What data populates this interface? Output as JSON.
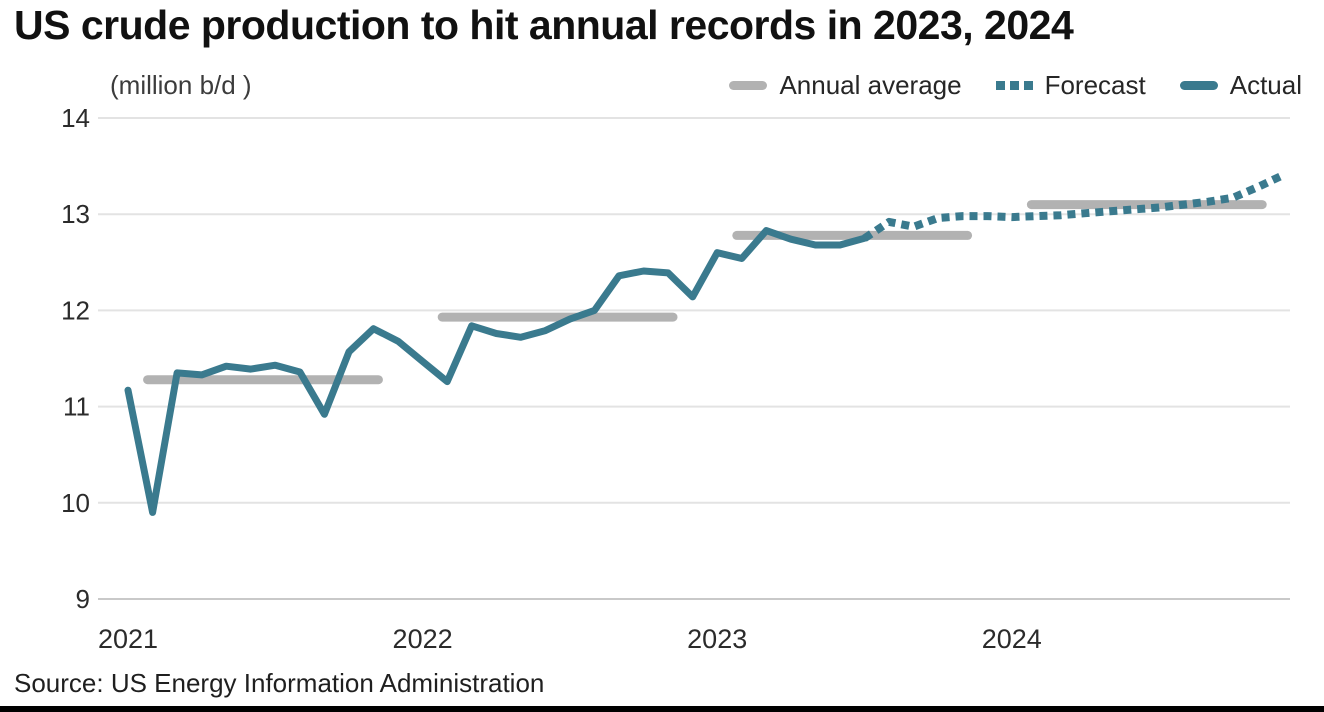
{
  "page": {
    "title": "US crude production to hit annual records in 2023, 2024",
    "source": "Source: US Energy Information Administration"
  },
  "legend": {
    "annual_average": "Annual average",
    "forecast": "Forecast",
    "actual": "Actual"
  },
  "chart_data": {
    "type": "line",
    "title": "US crude production to hit annual records in 2023, 2024",
    "unit_label": "(million b/d )",
    "ylabel": "million b/d",
    "ylim": [
      9,
      14
    ],
    "yticks": [
      14,
      13,
      12,
      11,
      10,
      9
    ],
    "xticks": [
      "2021",
      "2022",
      "2023",
      "2024"
    ],
    "x_start": "2021-01",
    "x_frequency": "monthly",
    "grid": "horizontal",
    "legend_position": "top-right",
    "series": [
      {
        "name": "Actual",
        "style": "solid",
        "color": "#3a7a8e",
        "start_month_index": 0,
        "values": [
          11.17,
          9.9,
          11.35,
          11.33,
          11.42,
          11.39,
          11.43,
          11.36,
          10.92,
          11.57,
          11.81,
          11.68,
          11.47,
          11.26,
          11.84,
          11.76,
          11.72,
          11.79,
          11.91,
          12.0,
          12.36,
          12.41,
          12.39,
          12.14,
          12.6,
          12.54,
          12.83,
          12.74,
          12.68,
          12.68,
          12.75
        ]
      },
      {
        "name": "Forecast",
        "style": "dotted",
        "color": "#3a7a8e",
        "start_month_index": 30,
        "values": [
          12.75,
          12.92,
          12.87,
          12.96,
          12.98,
          12.98,
          12.97,
          12.98,
          12.99,
          13.01,
          13.03,
          13.05,
          13.07,
          13.1,
          13.13,
          13.17,
          13.28,
          13.4
        ]
      }
    ],
    "annual_averages": [
      {
        "year": "2021",
        "value": 11.28
      },
      {
        "year": "2022",
        "value": 11.93
      },
      {
        "year": "2023",
        "value": 12.78
      },
      {
        "year": "2024",
        "value": 13.1
      }
    ],
    "colors": {
      "actual": "#3a7a8e",
      "forecast": "#3a7a8e",
      "annual_average": "#b2b2b2",
      "gridline": "#e3e3e3",
      "axis_line": "#c9c9c9",
      "tick_text": "#2b2b2b"
    }
  }
}
